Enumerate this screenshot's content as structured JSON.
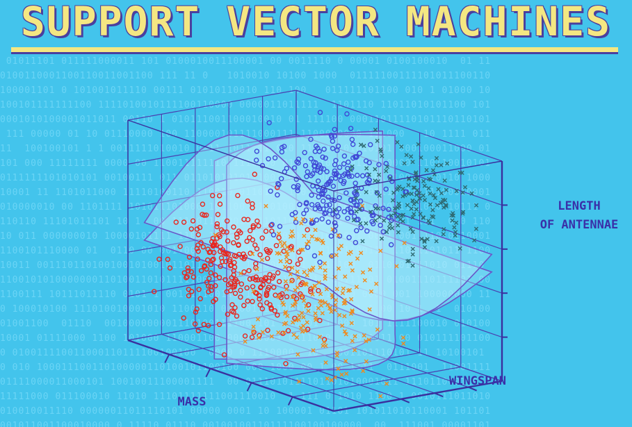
{
  "title": "SUPPORT VECTOR MACHINES",
  "chart_data": {
    "type": "scatter",
    "dimensions": 3,
    "axes": {
      "x": {
        "label": "MASS"
      },
      "y": {
        "label": "WINGSPAN"
      },
      "z": {
        "label_lines": [
          "LENGTH",
          "OF ANTENNAE"
        ]
      }
    },
    "grid": true,
    "legend": "none",
    "series": [
      {
        "marker": "circle",
        "color": "#e8261e",
        "cluster_center": [
          0.25,
          0.35,
          0.35
        ],
        "spread": [
          0.15,
          0.1,
          0.15
        ],
        "count": 260
      },
      {
        "marker": "circle",
        "color": "#3f48d6",
        "cluster_center": [
          0.35,
          0.8,
          0.7
        ],
        "spread": [
          0.12,
          0.13,
          0.12
        ],
        "count": 220
      },
      {
        "marker": "x",
        "color": "#f08a1c",
        "cluster_center": [
          0.65,
          0.35,
          0.35
        ],
        "spread": [
          0.15,
          0.12,
          0.16
        ],
        "count": 200
      },
      {
        "marker": "x",
        "color": "#2f6a72",
        "cluster_center": [
          0.72,
          0.82,
          0.75
        ],
        "spread": [
          0.12,
          0.1,
          0.12
        ],
        "count": 170
      }
    ],
    "decision_surfaces": 4
  }
}
